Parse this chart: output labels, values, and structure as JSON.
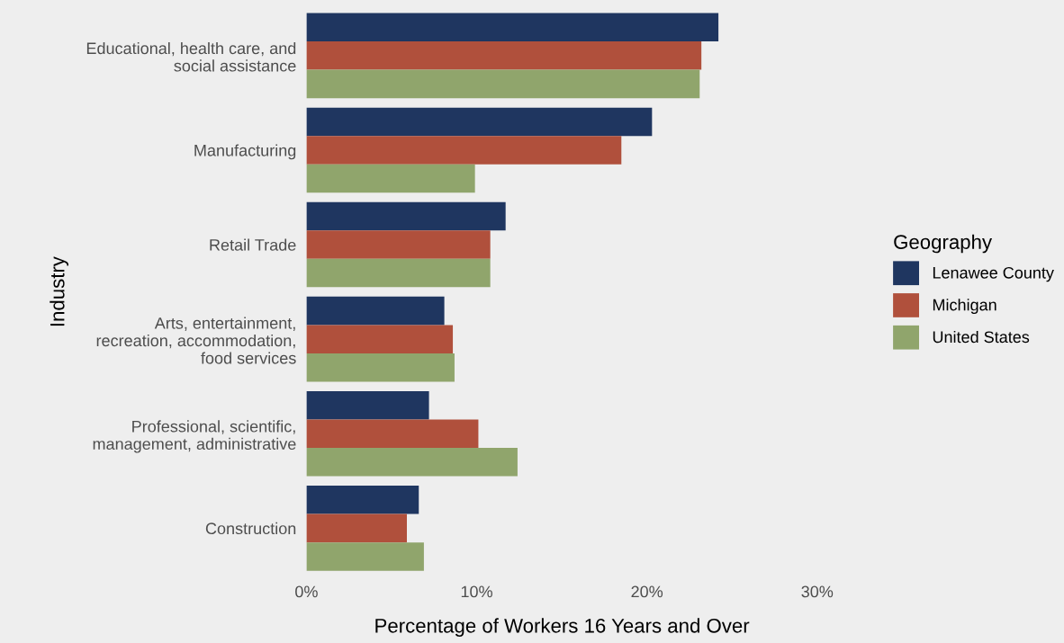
{
  "chart_data": {
    "type": "bar",
    "orientation": "horizontal",
    "xlabel": "Percentage of Workers 16 Years and Over",
    "ylabel": "Industry",
    "legend_title": "Geography",
    "legend": "right",
    "categories": [
      "Educational, health care, and\nsocial assistance",
      "Manufacturing",
      "Retail Trade",
      "Arts, entertainment,\nrecreation, accommodation,\nfood services",
      "Professional, scientific,\nmanagement, administrative",
      "Construction"
    ],
    "series": [
      {
        "name": "Lenawee County",
        "color": "#1f3660",
        "values": [
          24.2,
          20.3,
          11.7,
          8.1,
          7.2,
          6.6
        ]
      },
      {
        "name": "Michigan",
        "color": "#b0503c",
        "values": [
          23.2,
          18.5,
          10.8,
          8.6,
          10.1,
          5.9
        ]
      },
      {
        "name": "United States",
        "color": "#90a56c",
        "values": [
          23.1,
          9.9,
          10.8,
          8.7,
          12.4,
          6.9
        ]
      }
    ],
    "xlim": [
      0,
      30
    ],
    "xticks": [
      {
        "value": 0,
        "label": "0%"
      },
      {
        "value": 10,
        "label": "10%"
      },
      {
        "value": 20,
        "label": "20%"
      },
      {
        "value": 30,
        "label": "30%"
      }
    ],
    "grid": false
  }
}
